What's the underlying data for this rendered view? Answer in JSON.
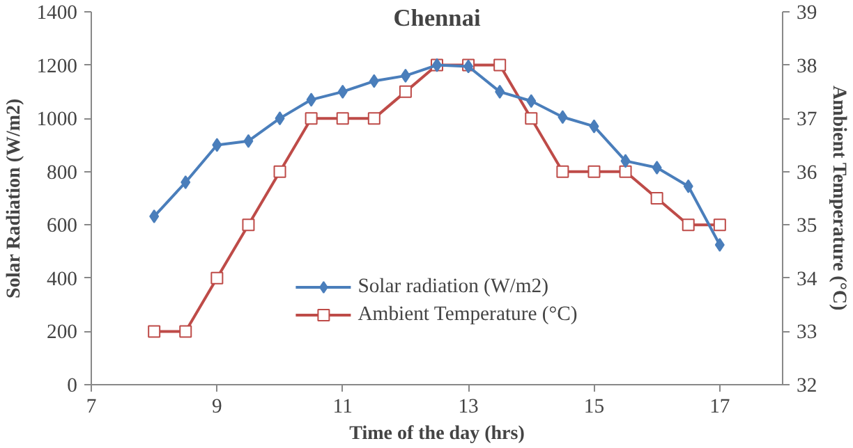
{
  "chart_data": {
    "type": "line",
    "title": "Chennai",
    "xlabel": "Time of the day (hrs)",
    "ylabel": "Solar Radiation (W/m2)",
    "y2label": "Ambient Temperature (°C)",
    "x": [
      8,
      8.5,
      9,
      9.5,
      10,
      10.5,
      11,
      11.5,
      12,
      12.5,
      13,
      13.5,
      14,
      14.5,
      15,
      15.5,
      16,
      16.5,
      17
    ],
    "series": [
      {
        "name": "Solar radiation (W/m2)",
        "color": "#4a7ebb",
        "marker": "diamond",
        "values": [
          632,
          760,
          900,
          915,
          1000,
          1070,
          1100,
          1140,
          1160,
          1200,
          1195,
          1100,
          1065,
          1005,
          970,
          840,
          815,
          745,
          525
        ]
      },
      {
        "name": "Ambient Temperature (°C)",
        "color": "#be4b48",
        "marker": "square",
        "axis": "y2",
        "values": [
          33,
          33,
          34,
          35,
          36,
          37,
          37,
          37,
          37.5,
          38,
          38,
          38,
          37,
          36,
          36,
          36,
          35.5,
          35,
          35
        ]
      }
    ],
    "xlim": [
      7,
      18
    ],
    "xticks": [
      7,
      9,
      11,
      13,
      15,
      17
    ],
    "ylim": [
      0,
      1400
    ],
    "yticks": [
      0,
      200,
      400,
      600,
      800,
      1000,
      1200,
      1400
    ],
    "y2lim": [
      32,
      39
    ],
    "y2ticks": [
      32,
      33,
      34,
      35,
      36,
      37,
      38,
      39
    ],
    "grid": false,
    "legend": "bottom",
    "line_style": "solid"
  }
}
